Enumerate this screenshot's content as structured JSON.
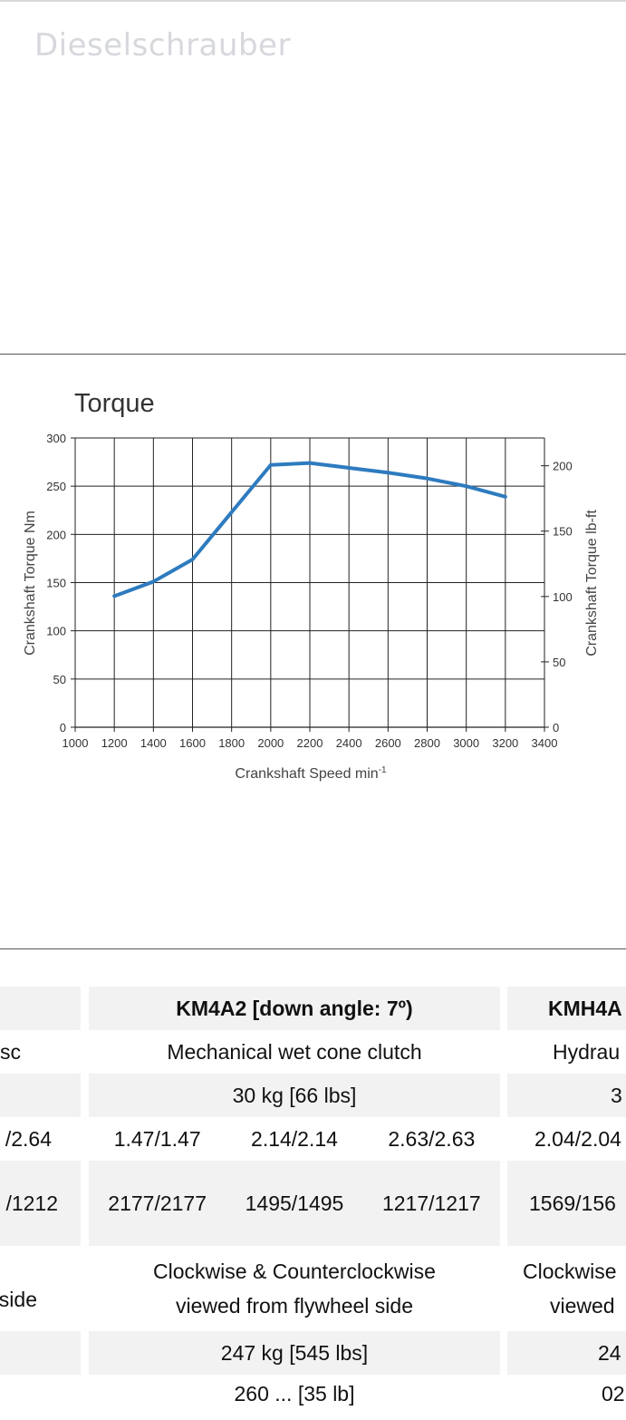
{
  "site": {
    "title": "Dieselschrauber"
  },
  "chart_data": {
    "type": "line",
    "title": "Torque",
    "xlabel": "Crankshaft Speed min",
    "xlabel_sup": "-1",
    "ylabel": "Crankshaft Torque  Nm",
    "y2label": "Crankshaft Torque  lb-ft",
    "xlim": [
      1000,
      3400
    ],
    "ylim": [
      0,
      300
    ],
    "y2lim": [
      0,
      221.27
    ],
    "x_ticks": [
      "1000",
      "1200",
      "1400",
      "1600",
      "1800",
      "2000",
      "2200",
      "2400",
      "2600",
      "2800",
      "3000",
      "3200",
      "3400"
    ],
    "y_ticks": [
      "0",
      "50",
      "100",
      "150",
      "200",
      "250",
      "300"
    ],
    "y2_ticks": [
      "0",
      "50",
      "100",
      "150",
      "200"
    ],
    "grid": true,
    "color": "#2e7bbf",
    "x": [
      1200,
      1400,
      1600,
      2000,
      2200,
      2400,
      2600,
      2800,
      3000,
      3200
    ],
    "values": [
      136,
      151,
      174,
      272,
      274,
      269,
      264,
      258,
      250,
      239
    ]
  },
  "table": {
    "header": {
      "mid": "KM4A2 [down angle: 7º)",
      "right": "KMH4A"
    },
    "clutch": {
      "left": "sc",
      "mid": "Mechanical wet cone clutch",
      "right": "Hydrau"
    },
    "weight": {
      "mid": "30 kg [66 lbs]",
      "right": "3"
    },
    "ratios": {
      "left": "/2.64",
      "a": "1.47/1.47",
      "b": "2.14/2.14",
      "c": "2.63/2.63",
      "right": "2.04/2.04"
    },
    "speeds": {
      "left": "/1212",
      "a": "2177/2177",
      "b": "1495/1495",
      "c": "1217/1217",
      "right": "1569/156"
    },
    "rotation": {
      "left": "side",
      "mid1": "Clockwise & Counterclockwise",
      "mid2": "viewed from flywheel side",
      "right1": "Clockwise",
      "right2": "viewed"
    },
    "dry_weight": {
      "mid": "247 kg [545 lbs]",
      "right": "24"
    },
    "partial": {
      "mid": "260 ...  [35 lb]",
      "right": "02"
    }
  }
}
